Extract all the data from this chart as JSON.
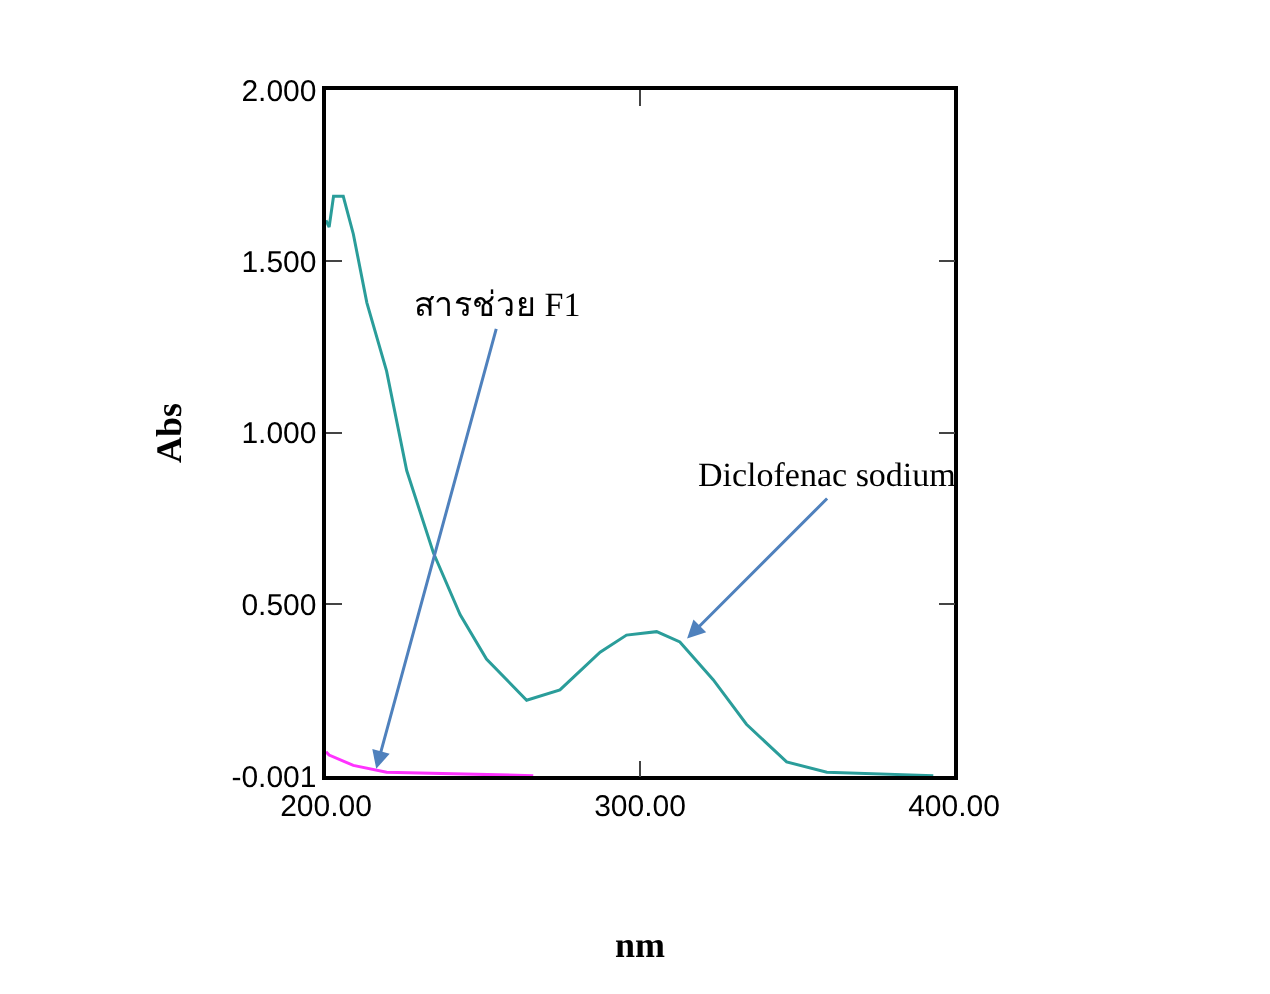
{
  "chart_data": {
    "type": "line",
    "xlabel": "nm",
    "ylabel": "Abs",
    "xlim": [
      200,
      400
    ],
    "xticks": [
      {
        "value": 200,
        "label": "200.00"
      },
      {
        "value": 300,
        "label": "300.00"
      },
      {
        "value": 400,
        "label": "400.00"
      }
    ],
    "ylim": [
      -0.001,
      2.0
    ],
    "yticks": [
      {
        "value": -0.001,
        "label": "-0.001"
      },
      {
        "value": 0.5,
        "label": "0.500"
      },
      {
        "value": 1.0,
        "label": "1.000"
      },
      {
        "value": 1.5,
        "label": "1.500"
      },
      {
        "value": 2.0,
        "label": "2.000"
      }
    ],
    "grid": false,
    "marker": "none",
    "line_style": "solid",
    "series": [
      {
        "color": "#2a9d9a",
        "x": [
          200,
          201,
          202.4,
          205.5,
          208.7,
          213,
          219.3,
          225.7,
          234.2,
          242.7,
          251.1,
          263.9,
          274.5,
          287.3,
          295.7,
          305.3,
          312.7,
          323.3,
          333.9,
          346.7,
          359.5,
          393.4
        ],
        "values": [
          1.62,
          1.6,
          1.69,
          1.69,
          1.58,
          1.38,
          1.18,
          0.89,
          0.65,
          0.47,
          0.34,
          0.22,
          0.25,
          0.36,
          0.41,
          0.42,
          0.39,
          0.28,
          0.15,
          0.04,
          0.01,
          0.0
        ]
      },
      {
        "color": "#ff33ff",
        "x": [
          200,
          201,
          208.7,
          219.3,
          266
        ],
        "values": [
          0.07,
          0.06,
          0.03,
          0.01,
          0.0
        ]
      }
    ],
    "annotations": [
      {
        "text": "สารช่วย F1",
        "x": 216,
        "y": 0.02
      },
      {
        "text": "Diclofenac sodium",
        "x": 315,
        "y": 0.4
      }
    ]
  }
}
